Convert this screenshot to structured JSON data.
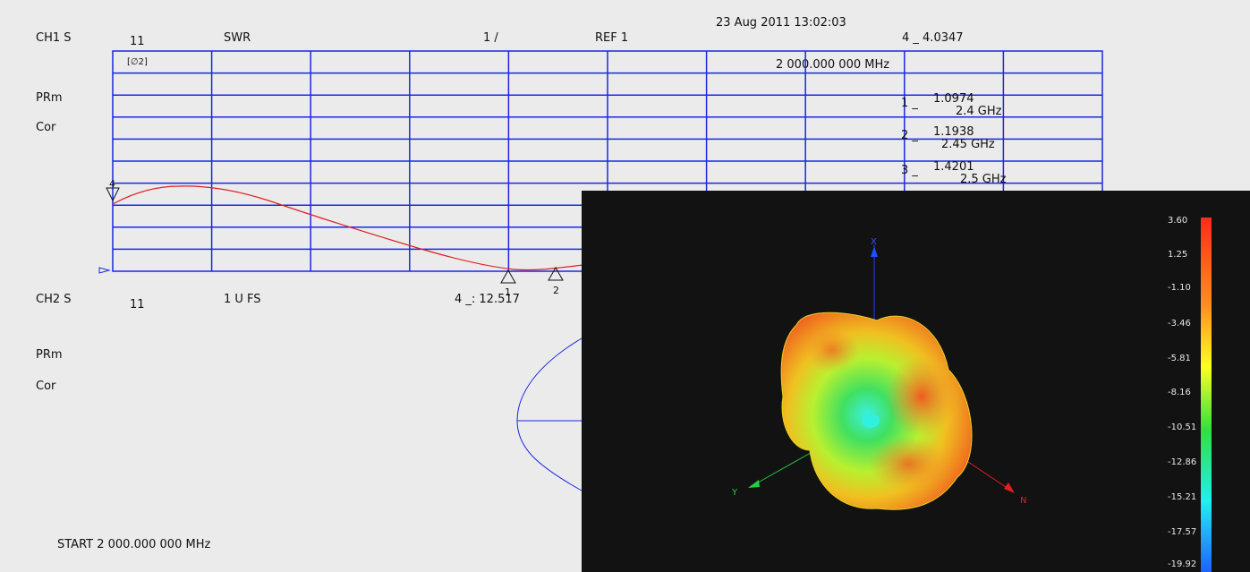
{
  "channel1": {
    "label": "CH1 S",
    "param": "11",
    "format": "SWR",
    "scale": "1 /",
    "ref": "REF 1",
    "timestamp": "23 Aug 2011  13:02:03",
    "active_marker": "4 _  4.0347",
    "marker_freq": "2 000.000 000 MHz",
    "status1": "PRm",
    "status2": "Cor",
    "icon_label": "[∅2]",
    "markers": [
      {
        "label": "1 _",
        "value": "1.0974",
        "freq": "2.4 GHz"
      },
      {
        "label": "2 _",
        "value": "1.1938",
        "freq": "2.45 GHz"
      },
      {
        "label": "3 _",
        "value": "1.4201",
        "freq": "2.5 GHz"
      }
    ],
    "trace_marker_labels": [
      "4",
      "1",
      "2"
    ]
  },
  "channel2": {
    "label": "CH2 S",
    "param": "11",
    "format": "1 U FS",
    "marker_readout": "4 _: 12.517",
    "status1": "PRm",
    "status2": "Cor"
  },
  "footer": {
    "start": "START 2 000.000 000 MHz"
  },
  "pattern3d": {
    "axis_labels": {
      "x": "X",
      "y": "Y",
      "z": "N"
    },
    "colorbar_ticks": [
      "3.60",
      "1.25",
      "-1.10",
      "-3.46",
      "-5.81",
      "-8.16",
      "-10.51",
      "-12.86",
      "-15.21",
      "-17.57",
      "-19.92"
    ]
  },
  "colors": {
    "grid": "#1a28e0",
    "trace": "#e02020",
    "background": "#ebebeb",
    "overlay_bg": "#121212"
  }
}
